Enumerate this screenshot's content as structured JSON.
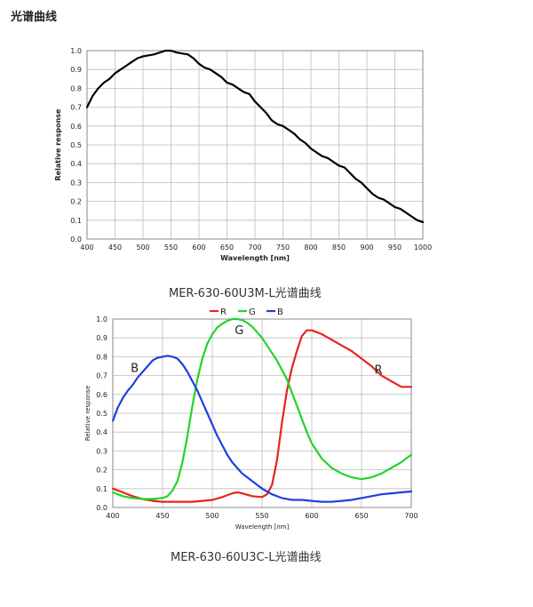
{
  "page": {
    "section_title": "光谱曲线"
  },
  "chart_data": [
    {
      "type": "line",
      "caption": "MER-630-60U3M-L光谱曲线",
      "xlabel": "Wavelength [nm]",
      "ylabel": "Relative response",
      "xlim": [
        400,
        1000
      ],
      "ylim": [
        0,
        1.0
      ],
      "xticks": [
        "400",
        "450",
        "500",
        "550",
        "600",
        "650",
        "700",
        "750",
        "800",
        "850",
        "900",
        "950",
        "1000"
      ],
      "yticks": [
        "0.0",
        "0.1",
        "0.2",
        "0.3",
        "0.4",
        "0.5",
        "0.6",
        "0.7",
        "0.8",
        "0.9",
        "1.0"
      ],
      "grid": true,
      "series": [
        {
          "color": "#000000",
          "x": [
            400,
            410,
            420,
            430,
            440,
            450,
            460,
            470,
            480,
            490,
            500,
            510,
            520,
            530,
            540,
            550,
            560,
            570,
            580,
            590,
            600,
            610,
            620,
            630,
            640,
            650,
            660,
            670,
            680,
            690,
            700,
            710,
            720,
            730,
            740,
            750,
            760,
            770,
            780,
            790,
            800,
            810,
            820,
            830,
            840,
            850,
            860,
            870,
            880,
            890,
            900,
            910,
            920,
            930,
            940,
            950,
            960,
            970,
            980,
            990,
            1000
          ],
          "y": [
            0.7,
            0.76,
            0.8,
            0.83,
            0.85,
            0.88,
            0.9,
            0.92,
            0.94,
            0.96,
            0.97,
            0.975,
            0.98,
            0.99,
            1.0,
            1.0,
            0.99,
            0.985,
            0.98,
            0.96,
            0.93,
            0.91,
            0.9,
            0.88,
            0.86,
            0.83,
            0.82,
            0.8,
            0.78,
            0.77,
            0.73,
            0.7,
            0.67,
            0.63,
            0.61,
            0.6,
            0.58,
            0.56,
            0.53,
            0.51,
            0.48,
            0.46,
            0.44,
            0.43,
            0.41,
            0.39,
            0.38,
            0.35,
            0.32,
            0.3,
            0.27,
            0.24,
            0.22,
            0.21,
            0.19,
            0.17,
            0.16,
            0.14,
            0.12,
            0.1,
            0.09
          ]
        }
      ]
    },
    {
      "type": "line",
      "caption": "MER-630-60U3C-L光谱曲线",
      "xlabel": "Wavelength [nm]",
      "ylabel": "Relative response",
      "xlim": [
        400,
        700
      ],
      "ylim": [
        0,
        1.0
      ],
      "xticks": [
        "400",
        "450",
        "500",
        "550",
        "600",
        "650",
        "700"
      ],
      "yticks": [
        "0.0",
        "0.1",
        "0.2",
        "0.3",
        "0.4",
        "0.5",
        "0.6",
        "0.7",
        "0.8",
        "0.9",
        "1.0"
      ],
      "grid": true,
      "legend_position": "top",
      "series": [
        {
          "name": "R",
          "label": "R",
          "color": "#e8231f",
          "x": [
            400,
            410,
            420,
            430,
            440,
            450,
            460,
            470,
            480,
            490,
            500,
            510,
            520,
            525,
            530,
            540,
            550,
            555,
            560,
            565,
            570,
            575,
            580,
            585,
            590,
            595,
            600,
            605,
            610,
            620,
            630,
            640,
            650,
            660,
            670,
            680,
            690,
            700
          ],
          "y": [
            0.1,
            0.08,
            0.06,
            0.045,
            0.035,
            0.03,
            0.03,
            0.03,
            0.03,
            0.035,
            0.04,
            0.055,
            0.075,
            0.08,
            0.075,
            0.06,
            0.055,
            0.07,
            0.12,
            0.25,
            0.45,
            0.62,
            0.74,
            0.83,
            0.91,
            0.94,
            0.94,
            0.93,
            0.92,
            0.89,
            0.86,
            0.83,
            0.79,
            0.75,
            0.7,
            0.67,
            0.64,
            0.64
          ]
        },
        {
          "name": "G",
          "label": "G",
          "color": "#22d42a",
          "x": [
            400,
            410,
            420,
            430,
            440,
            450,
            455,
            460,
            465,
            470,
            475,
            480,
            485,
            490,
            495,
            500,
            505,
            510,
            515,
            520,
            525,
            530,
            535,
            540,
            545,
            550,
            555,
            560,
            565,
            570,
            575,
            580,
            585,
            590,
            595,
            600,
            610,
            620,
            630,
            640,
            650,
            660,
            670,
            680,
            690,
            700
          ],
          "y": [
            0.08,
            0.06,
            0.05,
            0.045,
            0.045,
            0.05,
            0.06,
            0.09,
            0.14,
            0.24,
            0.38,
            0.54,
            0.68,
            0.79,
            0.87,
            0.92,
            0.955,
            0.975,
            0.99,
            1.0,
            1.0,
            0.995,
            0.98,
            0.96,
            0.93,
            0.9,
            0.86,
            0.82,
            0.78,
            0.73,
            0.68,
            0.61,
            0.54,
            0.47,
            0.4,
            0.34,
            0.26,
            0.21,
            0.18,
            0.16,
            0.15,
            0.16,
            0.18,
            0.21,
            0.24,
            0.28
          ]
        },
        {
          "name": "B",
          "label": "B",
          "color": "#1f3fe0",
          "x": [
            400,
            405,
            410,
            415,
            420,
            425,
            430,
            435,
            440,
            445,
            450,
            455,
            460,
            465,
            470,
            475,
            480,
            485,
            490,
            495,
            500,
            505,
            510,
            515,
            520,
            525,
            530,
            540,
            550,
            560,
            570,
            580,
            590,
            600,
            610,
            620,
            630,
            640,
            650,
            660,
            670,
            680,
            690,
            700
          ],
          "y": [
            0.46,
            0.53,
            0.58,
            0.62,
            0.65,
            0.69,
            0.72,
            0.75,
            0.78,
            0.795,
            0.8,
            0.805,
            0.8,
            0.79,
            0.76,
            0.72,
            0.67,
            0.62,
            0.56,
            0.5,
            0.44,
            0.38,
            0.33,
            0.28,
            0.24,
            0.21,
            0.18,
            0.14,
            0.1,
            0.07,
            0.05,
            0.04,
            0.04,
            0.035,
            0.03,
            0.03,
            0.035,
            0.04,
            0.05,
            0.06,
            0.07,
            0.075,
            0.08,
            0.085
          ]
        }
      ]
    }
  ]
}
